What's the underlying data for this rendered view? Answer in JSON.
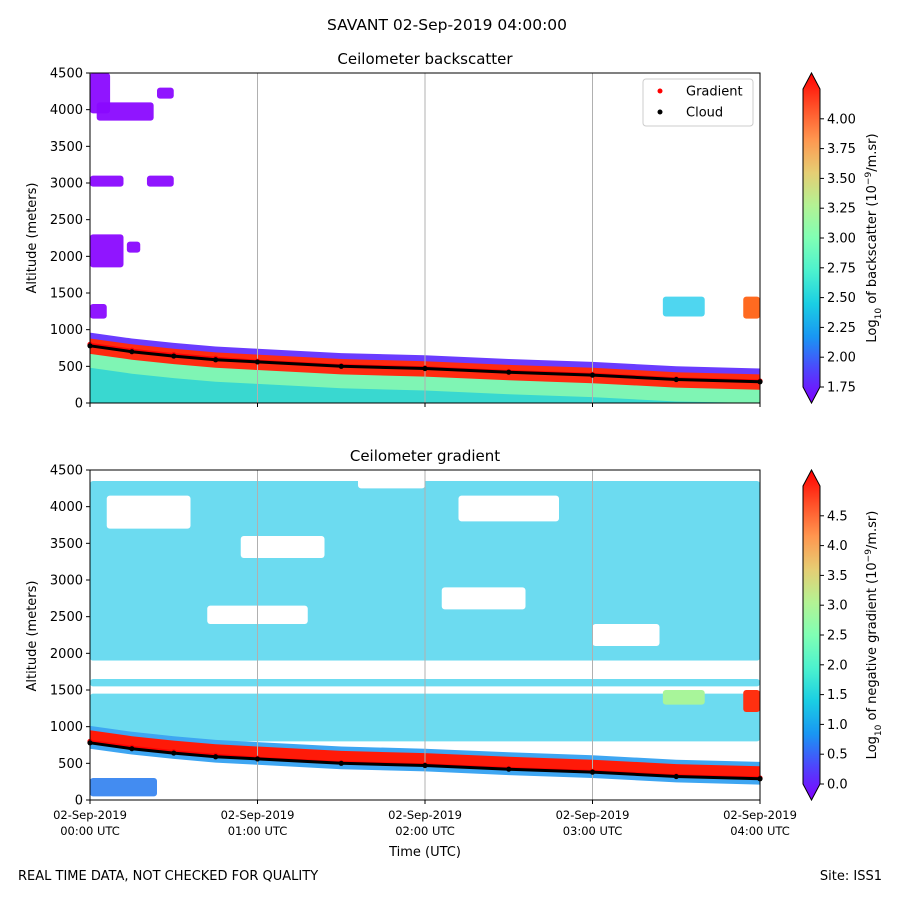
{
  "suptitle": "SAVANT 02-Sep-2019 04:00:00",
  "footer": {
    "left": "REAL TIME DATA, NOT CHECKED FOR QUALITY",
    "right": "Site: ISS1"
  },
  "colors": {
    "cloud": "#000000",
    "gradient": "#ff0000",
    "grid": "#b0b0b0",
    "colormap": [
      "#8000ff",
      "#4f44fc",
      "#1996f3",
      "#1acee3",
      "#4cf2ce",
      "#80ffb4",
      "#b4f293",
      "#e6cd73",
      "#ff964f",
      "#ff4e27",
      "#ff0000"
    ]
  },
  "time_axis": {
    "xlabel": "Time (UTC)",
    "range_hours": [
      0,
      4
    ],
    "ticks": [
      {
        "h": 0,
        "date": "02-Sep-2019",
        "time": "00:00 UTC"
      },
      {
        "h": 1,
        "date": "02-Sep-2019",
        "time": "01:00 UTC"
      },
      {
        "h": 2,
        "date": "02-Sep-2019",
        "time": "02:00 UTC"
      },
      {
        "h": 3,
        "date": "02-Sep-2019",
        "time": "03:00 UTC"
      },
      {
        "h": 4,
        "date": "02-Sep-2019",
        "time": "04:00 UTC"
      }
    ]
  },
  "chart_data": [
    {
      "type": "heatmap",
      "title": "Ceilometer backscatter",
      "ylabel": "Altitude (meters)",
      "ylim": [
        0,
        4500
      ],
      "yticks": [
        "0",
        "500",
        "1000",
        "1500",
        "2000",
        "2500",
        "3000",
        "3500",
        "4000",
        "4500"
      ],
      "colorbar": {
        "label": "Log10 of backscatter (10^-9/m.sr)",
        "label_parts": {
          "pre": "Log",
          "sub": "10",
          "mid": " of backscatter (10",
          "sup": "−9",
          "post": "/m.sr)"
        },
        "range": [
          1.75,
          4.25
        ],
        "ticks": [
          "1.75",
          "2.00",
          "2.25",
          "2.50",
          "2.75",
          "3.00",
          "3.25",
          "3.50",
          "3.75",
          "4.00"
        ]
      },
      "legend": {
        "position": "top-right",
        "entries": [
          {
            "label": "Gradient",
            "color": "#ff0000"
          },
          {
            "label": "Cloud",
            "color": "#000000"
          }
        ]
      },
      "series": [
        {
          "name": "Cloud",
          "x_hours": [
            0,
            0.25,
            0.5,
            0.75,
            1.0,
            1.5,
            2.0,
            2.5,
            3.0,
            3.5,
            4.0
          ],
          "altitude_m": [
            780,
            700,
            640,
            590,
            560,
            500,
            470,
            420,
            380,
            320,
            290
          ]
        },
        {
          "name": "Gradient",
          "x_hours": [
            0,
            0.25,
            0.5,
            0.75,
            1.0,
            1.5,
            2.0,
            2.5,
            3.0,
            3.5,
            4.0
          ],
          "altitude_m": [
            800,
            720,
            660,
            610,
            570,
            510,
            480,
            430,
            390,
            330,
            300
          ]
        }
      ]
    },
    {
      "type": "heatmap",
      "title": "Ceilometer gradient",
      "ylabel": "Altitude (meters)",
      "ylim": [
        0,
        4500
      ],
      "yticks": [
        "0",
        "500",
        "1000",
        "1500",
        "2000",
        "2500",
        "3000",
        "3500",
        "4000",
        "4500"
      ],
      "colorbar": {
        "label": "Log10 of negative gradient (10^-9/m.sr)",
        "label_parts": {
          "pre": "Log",
          "sub": "10",
          "mid": " of negative gradient (10",
          "sup": "−9",
          "post": "/m.sr)"
        },
        "range": [
          0.0,
          5.0
        ],
        "ticks": [
          "0.0",
          "0.5",
          "1.0",
          "1.5",
          "2.0",
          "2.5",
          "3.0",
          "3.5",
          "4.0",
          "4.5"
        ]
      },
      "series": [
        {
          "name": "Cloud",
          "x_hours": [
            0,
            0.25,
            0.5,
            0.75,
            1.0,
            1.5,
            2.0,
            2.5,
            3.0,
            3.5,
            4.0
          ],
          "altitude_m": [
            780,
            700,
            640,
            590,
            560,
            500,
            470,
            420,
            380,
            320,
            290
          ]
        },
        {
          "name": "Gradient",
          "x_hours": [
            0,
            0.25,
            0.5,
            0.75,
            1.0,
            1.5,
            2.0,
            2.5,
            3.0,
            3.5,
            4.0
          ],
          "altitude_m": [
            800,
            720,
            660,
            610,
            570,
            510,
            480,
            430,
            390,
            330,
            300
          ]
        }
      ]
    }
  ]
}
